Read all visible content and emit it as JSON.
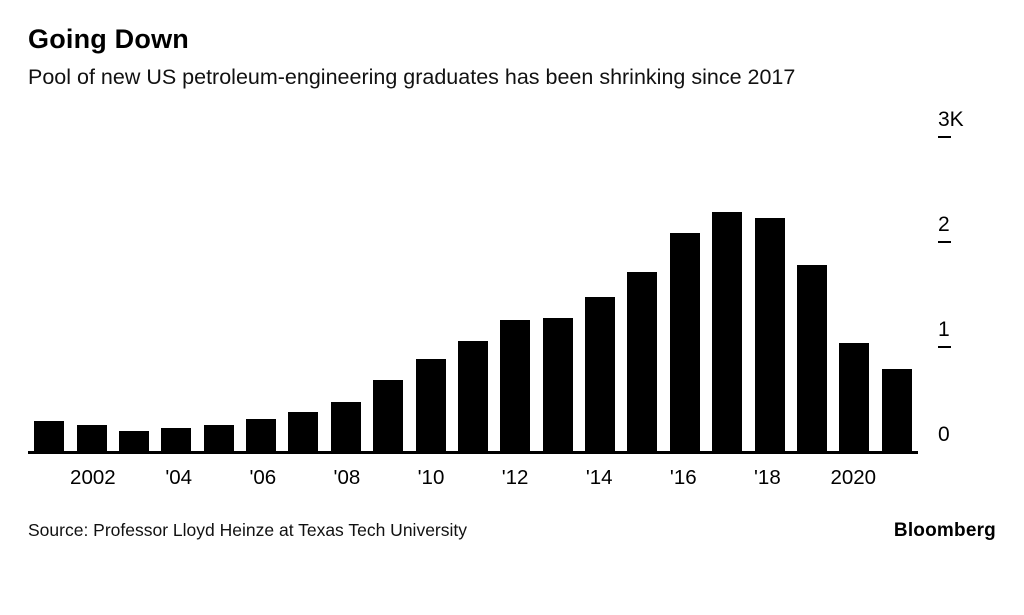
{
  "header": {
    "title": "Going Down",
    "subtitle": "Pool of new US petroleum-engineering graduates has been shrinking since 2017"
  },
  "chart_data": {
    "type": "bar",
    "title": "Going Down",
    "subtitle": "Pool of new US petroleum-engineering graduates has been shrinking since 2017",
    "unit": "thousands of graduates",
    "categories": [
      2001,
      2002,
      2003,
      2004,
      2005,
      2006,
      2007,
      2008,
      2009,
      2010,
      2011,
      2012,
      2013,
      2014,
      2015,
      2016,
      2017,
      2018,
      2019,
      2020,
      2021
    ],
    "values": [
      0.29,
      0.25,
      0.19,
      0.22,
      0.25,
      0.3,
      0.37,
      0.47,
      0.68,
      0.88,
      1.05,
      1.25,
      1.27,
      1.47,
      1.7,
      2.08,
      2.28,
      2.22,
      1.77,
      1.03,
      0.78
    ],
    "x_tick_labels": {
      "2002": "2002",
      "2004": "'04",
      "2006": "'06",
      "2008": "'08",
      "2010": "'10",
      "2012": "'12",
      "2014": "'14",
      "2016": "'16",
      "2018": "'18",
      "2020": "2020"
    },
    "y_ticks": [
      {
        "value": 3,
        "label": "3K"
      },
      {
        "value": 2,
        "label": "2"
      },
      {
        "value": 1,
        "label": "1"
      },
      {
        "value": 0,
        "label": "0"
      }
    ],
    "ylim": [
      0,
      3.1
    ],
    "bar_color": "#000000",
    "grid": false,
    "legend": "none",
    "y_axis_position": "right"
  },
  "footer": {
    "source": "Source: Professor Lloyd Heinze at Texas Tech University",
    "logo": "Bloomberg"
  }
}
